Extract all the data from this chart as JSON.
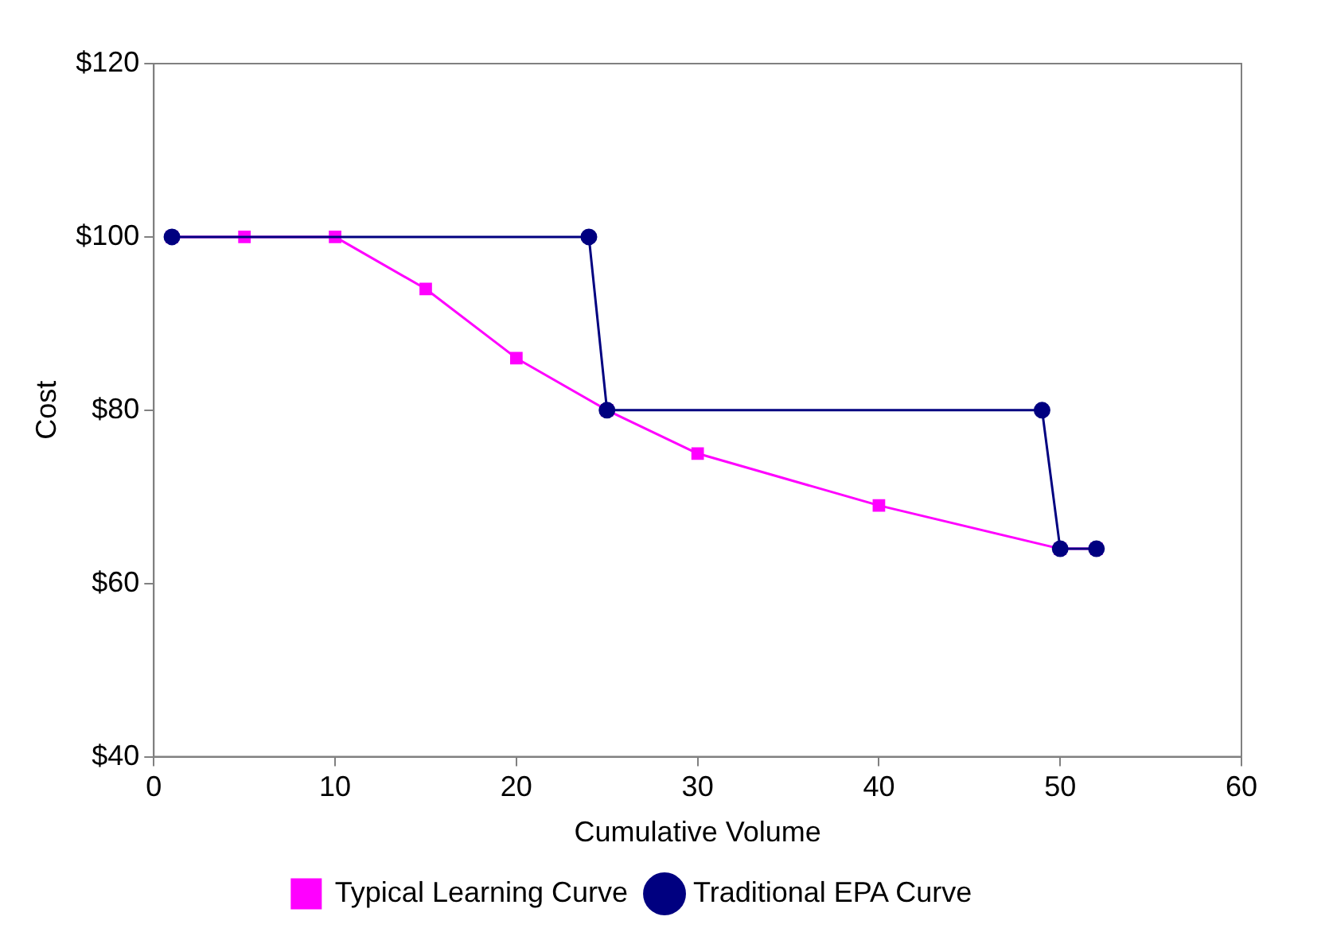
{
  "chart_data": {
    "type": "line",
    "xlabel": "Cumulative Volume",
    "ylabel": "Cost",
    "xlim": [
      0,
      60
    ],
    "xticks": [
      0,
      10,
      20,
      30,
      40,
      50,
      60
    ],
    "ylim": [
      40,
      120
    ],
    "yticks": [
      {
        "value": 40,
        "label": "$40"
      },
      {
        "value": 60,
        "label": "$60"
      },
      {
        "value": 80,
        "label": "$80"
      },
      {
        "value": 100,
        "label": "$100"
      },
      {
        "value": 120,
        "label": "$120"
      }
    ],
    "grid": false,
    "legend": "bottom",
    "line_style": "solid",
    "series": [
      {
        "name": "Typical Learning Curve",
        "color": "#ff00ff",
        "marker": "square",
        "x": [
          1,
          5,
          10,
          15,
          20,
          25,
          30,
          40,
          50,
          52
        ],
        "values": [
          100,
          100,
          100,
          94,
          86,
          80,
          75,
          69,
          64,
          64
        ]
      },
      {
        "name": "Traditional EPA Curve",
        "color": "#000080",
        "marker": "circle",
        "x": [
          1,
          24,
          25,
          49,
          50,
          52
        ],
        "values": [
          100,
          100,
          80,
          80,
          64,
          64
        ]
      }
    ]
  }
}
